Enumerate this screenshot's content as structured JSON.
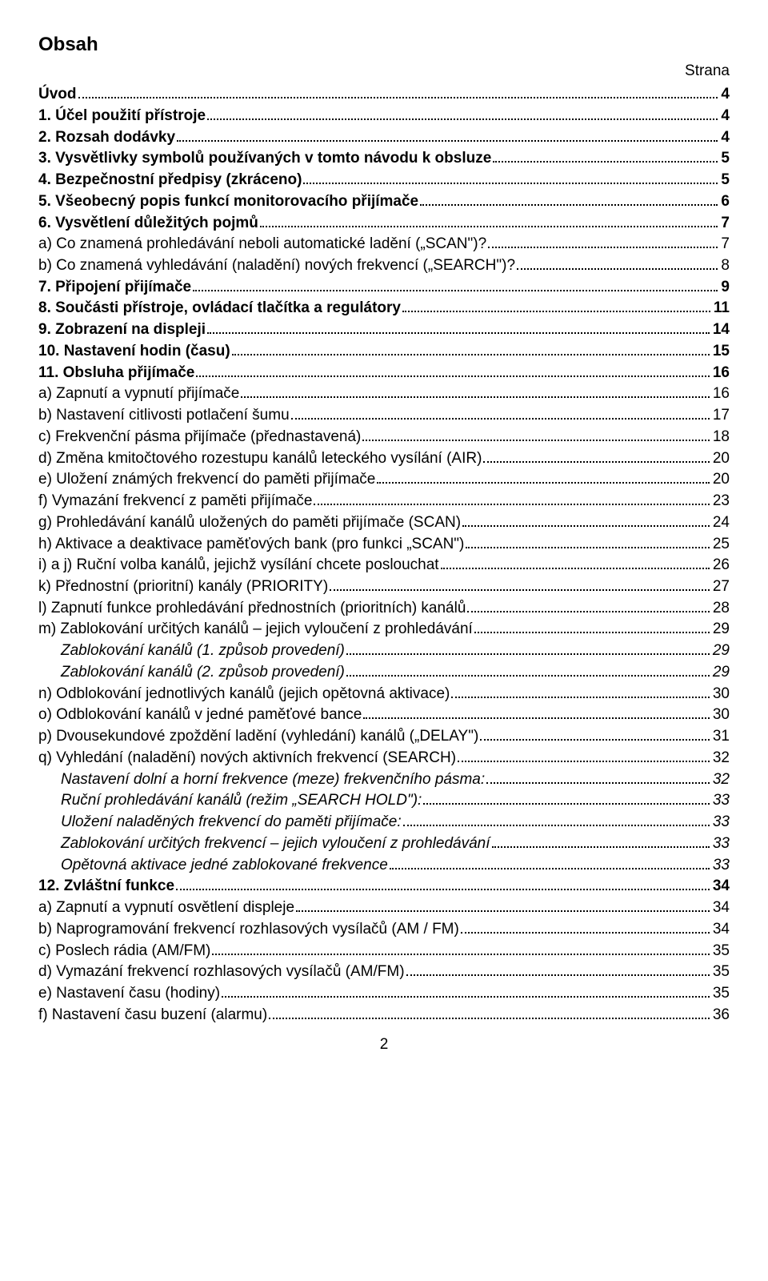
{
  "title": "Obsah",
  "strana_label": "Strana",
  "page_number": "2",
  "entries": [
    {
      "label": "Úvod",
      "page": "4",
      "bold": true,
      "italic": false,
      "indent": 0
    },
    {
      "label": "1. Účel použití přístroje",
      "page": "4",
      "bold": true,
      "italic": false,
      "indent": 0
    },
    {
      "label": "2. Rozsah dodávky",
      "page": "4",
      "bold": true,
      "italic": false,
      "indent": 0
    },
    {
      "label": "3. Vysvětlivky symbolů používaných v tomto návodu k obsluze",
      "page": "5",
      "bold": true,
      "italic": false,
      "indent": 0
    },
    {
      "label": "4. Bezpečnostní předpisy (zkráceno)",
      "page": "5",
      "bold": true,
      "italic": false,
      "indent": 0
    },
    {
      "label": "5. Všeobecný popis funkcí monitorovacího přijímače",
      "page": "6",
      "bold": true,
      "italic": false,
      "indent": 0
    },
    {
      "label": "6. Vysvětlení důležitých pojmů",
      "page": "7",
      "bold": true,
      "italic": false,
      "indent": 0
    },
    {
      "label": "a) Co znamená prohledávání neboli automatické ladění („SCAN\")?",
      "page": "7",
      "bold": false,
      "italic": false,
      "indent": 0
    },
    {
      "label": "b) Co znamená vyhledávání (naladění) nových frekvencí („SEARCH\")?",
      "page": "8",
      "bold": false,
      "italic": false,
      "indent": 0
    },
    {
      "label": "7. Připojení přijímače",
      "page": "9",
      "bold": true,
      "italic": false,
      "indent": 0
    },
    {
      "label": "8. Součásti přístroje, ovládací tlačítka a regulátory",
      "page": "11",
      "bold": true,
      "italic": false,
      "indent": 0
    },
    {
      "label": "9. Zobrazení na displeji",
      "page": "14",
      "bold": true,
      "italic": false,
      "indent": 0
    },
    {
      "label": "10. Nastavení hodin (času)",
      "page": "15",
      "bold": true,
      "italic": false,
      "indent": 0
    },
    {
      "label": "11. Obsluha přijímače",
      "page": "16",
      "bold": true,
      "italic": false,
      "indent": 0
    },
    {
      "label": "a) Zapnutí a vypnutí přijímače",
      "page": "16",
      "bold": false,
      "italic": false,
      "indent": 0
    },
    {
      "label": "b) Nastavení citlivosti potlačení šumu",
      "page": "17",
      "bold": false,
      "italic": false,
      "indent": 0
    },
    {
      "label": "c) Frekvenční pásma přijímače (přednastavená)",
      "page": "18",
      "bold": false,
      "italic": false,
      "indent": 0
    },
    {
      "label": "d) Změna kmitočtového rozestupu kanálů leteckého vysílání (AIR)",
      "page": "20",
      "bold": false,
      "italic": false,
      "indent": 0
    },
    {
      "label": "e) Uložení známých frekvencí do paměti přijímače",
      "page": "20",
      "bold": false,
      "italic": false,
      "indent": 0
    },
    {
      "label": "f) Vymazání frekvencí z paměti přijímače",
      "page": "23",
      "bold": false,
      "italic": false,
      "indent": 0
    },
    {
      "label": "g) Prohledávání kanálů uložených do paměti přijímače (SCAN)",
      "page": "24",
      "bold": false,
      "italic": false,
      "indent": 0
    },
    {
      "label": "h) Aktivace a deaktivace paměťových bank (pro funkci „SCAN\")",
      "page": "25",
      "bold": false,
      "italic": false,
      "indent": 0
    },
    {
      "label": "i) a j) Ruční volba kanálů, jejichž vysílání chcete poslouchat",
      "page": "26",
      "bold": false,
      "italic": false,
      "indent": 0
    },
    {
      "label": "k) Přednostní (prioritní) kanály (PRIORITY)",
      "page": "27",
      "bold": false,
      "italic": false,
      "indent": 0
    },
    {
      "label": "l) Zapnutí funkce prohledávání přednostních (prioritních) kanálů",
      "page": "28",
      "bold": false,
      "italic": false,
      "indent": 0
    },
    {
      "label": "m) Zablokování určitých kanálů – jejich vyloučení z prohledávání",
      "page": "29",
      "bold": false,
      "italic": false,
      "indent": 0
    },
    {
      "label": "Zablokování kanálů  (1. způsob provedení)",
      "page": "29",
      "bold": false,
      "italic": true,
      "indent": 1
    },
    {
      "label": "Zablokování kanálů  (2. způsob provedení)",
      "page": "29",
      "bold": false,
      "italic": true,
      "indent": 1
    },
    {
      "label": "n) Odblokování jednotlivých kanálů (jejich opětovná aktivace)",
      "page": "30",
      "bold": false,
      "italic": false,
      "indent": 0
    },
    {
      "label": "o) Odblokování kanálů v jedné paměťové bance",
      "page": "30",
      "bold": false,
      "italic": false,
      "indent": 0
    },
    {
      "label": "p) Dvousekundové zpoždění ladění (vyhledání) kanálů („DELAY\")",
      "page": "31",
      "bold": false,
      "italic": false,
      "indent": 0
    },
    {
      "label": "q) Vyhledání (naladění) nových aktivních frekvencí (SEARCH)",
      "page": "32",
      "bold": false,
      "italic": false,
      "indent": 0
    },
    {
      "label": "Nastavení dolní a horní frekvence (meze) frekvenčního pásma:",
      "page": "32",
      "bold": false,
      "italic": true,
      "indent": 1
    },
    {
      "label": "Ruční prohledávání kanálů (režim „SEARCH HOLD\"):",
      "page": "33",
      "bold": false,
      "italic": true,
      "indent": 1
    },
    {
      "label": "Uložení naladěných frekvencí do paměti přijímače:",
      "page": "33",
      "bold": false,
      "italic": true,
      "indent": 1
    },
    {
      "label": "Zablokování určitých frekvencí – jejich vyloučení z prohledávání",
      "page": "33",
      "bold": false,
      "italic": true,
      "indent": 1
    },
    {
      "label": "Opětovná aktivace jedné zablokované frekvence",
      "page": "33",
      "bold": false,
      "italic": true,
      "indent": 1
    },
    {
      "label": "12. Zvláštní funkce",
      "page": "34",
      "bold": true,
      "italic": false,
      "indent": 0
    },
    {
      "label": "a) Zapnutí a vypnutí osvětlení displeje",
      "page": "34",
      "bold": false,
      "italic": false,
      "indent": 0
    },
    {
      "label": "b) Naprogramování frekvencí rozhlasových vysílačů (AM / FM)",
      "page": "34",
      "bold": false,
      "italic": false,
      "indent": 0
    },
    {
      "label": "c) Poslech rádia (AM/FM)",
      "page": "35",
      "bold": false,
      "italic": false,
      "indent": 0
    },
    {
      "label": "d) Vymazání frekvencí rozhlasových vysílačů (AM/FM)",
      "page": "35",
      "bold": false,
      "italic": false,
      "indent": 0
    },
    {
      "label": "e) Nastavení času (hodiny)",
      "page": "35",
      "bold": false,
      "italic": false,
      "indent": 0
    },
    {
      "label": "f) Nastavení času buzení (alarmu)",
      "page": "36",
      "bold": false,
      "italic": false,
      "indent": 0
    }
  ]
}
